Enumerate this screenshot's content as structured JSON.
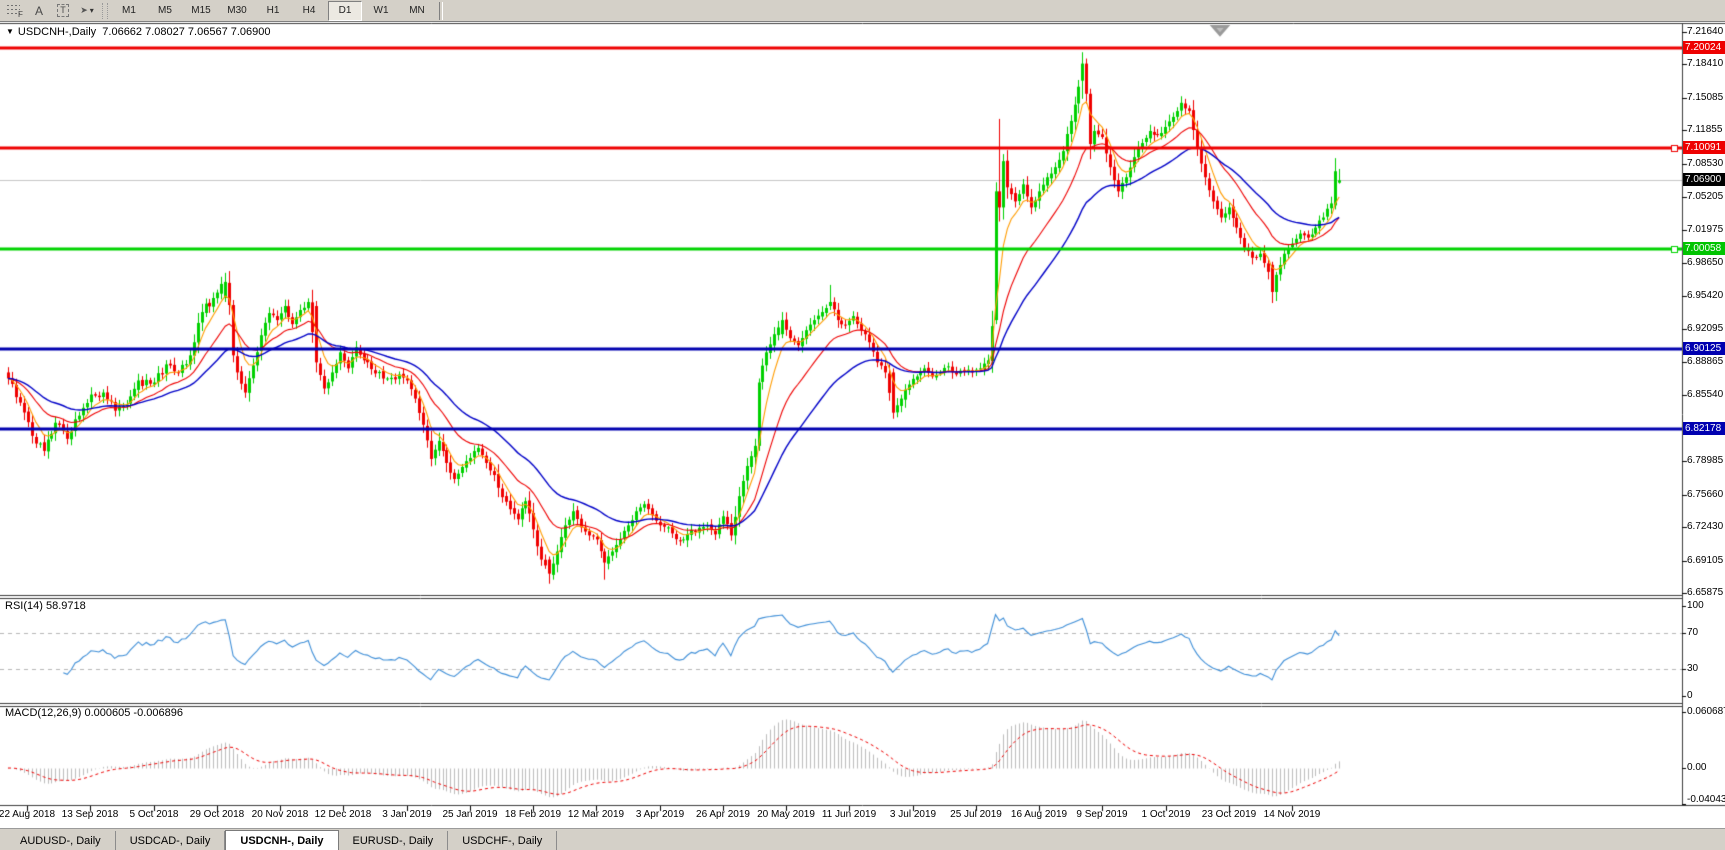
{
  "toolbar": {
    "tools": [
      {
        "name": "fibonacci-tool",
        "glyph": "F"
      },
      {
        "name": "text-label-tool",
        "glyph": "A"
      },
      {
        "name": "text-tool",
        "glyph": "T"
      },
      {
        "name": "arrows-tool",
        "glyph": "➤",
        "caret": "▾"
      }
    ],
    "timeframes": [
      "M1",
      "M5",
      "M15",
      "M30",
      "H1",
      "H4",
      "D1",
      "W1",
      "MN"
    ],
    "active_timeframe": "D1"
  },
  "chart": {
    "title": "USDCNH-,Daily",
    "ohlc_text": "7.06662 7.08027 7.06567 7.06900",
    "collapse_glyph": "▼"
  },
  "price_axis": {
    "ticks": [
      "7.21640",
      "7.18410",
      "7.15085",
      "7.11855",
      "7.08530",
      "7.05205",
      "7.01975",
      "6.98650",
      "6.95420",
      "6.92095",
      "6.88865",
      "6.85540",
      "6.78985",
      "6.75660",
      "6.72430",
      "6.69105",
      "6.65875"
    ],
    "badges": [
      {
        "text": "7.20024",
        "bg": "#ee0000"
      },
      {
        "text": "7.10091",
        "bg": "#ee0000"
      },
      {
        "text": "7.06900",
        "bg": "#000000"
      },
      {
        "text": "7.00058",
        "bg": "#00c400"
      },
      {
        "text": "6.90125",
        "bg": "#0000b0"
      },
      {
        "text": "6.82178",
        "bg": "#0000b0"
      }
    ]
  },
  "rsi": {
    "label": "RSI(14)",
    "value": "58.9718",
    "axis": [
      "100",
      "70",
      "30",
      "0"
    ]
  },
  "macd": {
    "label": "MACD(12,26,9)",
    "values": "0.000605 -0.006896",
    "axis": [
      "0.060687",
      "0.00",
      "-0.040432"
    ]
  },
  "tabs": [
    {
      "label": "AUDUSD-, Daily",
      "active": false
    },
    {
      "label": "USDCAD-, Daily",
      "active": false
    },
    {
      "label": "USDCNH-, Daily",
      "active": true
    },
    {
      "label": "EURUSD-, Daily",
      "active": false
    },
    {
      "label": "USDCHF-, Daily",
      "active": false
    }
  ],
  "chart_data": {
    "type": "candlestick",
    "symbol": "USDCNH-",
    "timeframe": "Daily",
    "last_ohlc": {
      "open": 7.06662,
      "high": 7.08027,
      "low": 7.06567,
      "close": 7.069
    },
    "current_price": 7.069,
    "price_range": [
      6.65875,
      7.2164
    ],
    "candle_count": 338,
    "dates": [
      "22 Aug 2018",
      "13 Sep 2018",
      "5 Oct 2018",
      "29 Oct 2018",
      "20 Nov 2018",
      "12 Dec 2018",
      "3 Jan 2019",
      "25 Jan 2019",
      "18 Feb 2019",
      "12 Mar 2019",
      "3 Apr 2019",
      "26 Apr 2019",
      "20 May 2019",
      "11 Jun 2019",
      "3 Jul 2019",
      "25 Jul 2019",
      "16 Aug 2019",
      "9 Sep 2019",
      "1 Oct 2019",
      "23 Oct 2019",
      "14 Nov 2019"
    ],
    "colors": {
      "bull": "#00d000",
      "bear": "#ef0000",
      "ma_fast": "#ff9c00",
      "ma_mid": "#ef0000",
      "ma_slow": "#0000c8",
      "rsi_line": "#3f8fd8",
      "macd_hist": "#bdbdbd",
      "macd_signal": "#ef0000",
      "price_line": "#c6c6c6",
      "level_dash": "#b6b6b6"
    },
    "horizontal_lines": [
      {
        "price": 7.20024,
        "color": "#ee0000",
        "width": 3,
        "endpoint_square": false
      },
      {
        "price": 7.10091,
        "color": "#ee0000",
        "width": 3,
        "endpoint_square": true
      },
      {
        "price": 7.00058,
        "color": "#00d400",
        "width": 3,
        "endpoint_square": true
      },
      {
        "price": 6.90125,
        "color": "#0000b0",
        "width": 3,
        "endpoint_square": false
      },
      {
        "price": 6.82178,
        "color": "#0000b0",
        "width": 3,
        "endpoint_square": false
      }
    ],
    "moving_averages": [
      {
        "name": "fast",
        "period": 6,
        "color": "#ff9c00"
      },
      {
        "name": "medium",
        "period": 17,
        "color": "#ef0000"
      },
      {
        "name": "slow",
        "period": 34,
        "color": "#0000c8"
      }
    ],
    "indicators": [
      {
        "name": "RSI",
        "period": 14,
        "value": 58.9718,
        "levels": [
          70,
          30
        ],
        "range": [
          0,
          100
        ]
      },
      {
        "name": "MACD",
        "params": [
          12,
          26,
          9
        ],
        "value": 0.000605,
        "signal": -0.006896,
        "scale_max": 0.060687,
        "scale_min": -0.040432
      }
    ],
    "anchor_closes": [
      [
        0,
        6.872
      ],
      [
        3,
        6.848
      ],
      [
        6,
        6.815
      ],
      [
        9,
        6.8
      ],
      [
        12,
        6.828
      ],
      [
        15,
        6.812
      ],
      [
        18,
        6.835
      ],
      [
        21,
        6.856
      ],
      [
        24,
        6.858
      ],
      [
        27,
        6.84
      ],
      [
        30,
        6.846
      ],
      [
        33,
        6.87
      ],
      [
        37,
        6.868
      ],
      [
        40,
        6.886
      ],
      [
        43,
        6.878
      ],
      [
        46,
        6.895
      ],
      [
        49,
        6.938
      ],
      [
        52,
        6.952
      ],
      [
        55,
        6.968
      ],
      [
        56,
        6.945
      ],
      [
        57,
        6.895
      ],
      [
        58,
        6.878
      ],
      [
        60,
        6.858
      ],
      [
        62,
        6.885
      ],
      [
        64,
        6.915
      ],
      [
        66,
        6.937
      ],
      [
        68,
        6.93
      ],
      [
        70,
        6.944
      ],
      [
        72,
        6.926
      ],
      [
        74,
        6.94
      ],
      [
        76,
        6.948
      ],
      [
        78,
        6.888
      ],
      [
        80,
        6.862
      ],
      [
        82,
        6.878
      ],
      [
        84,
        6.898
      ],
      [
        86,
        6.882
      ],
      [
        88,
        6.903
      ],
      [
        90,
        6.89
      ],
      [
        93,
        6.877
      ],
      [
        96,
        6.872
      ],
      [
        99,
        6.876
      ],
      [
        101,
        6.87
      ],
      [
        103,
        6.852
      ],
      [
        105,
        6.826
      ],
      [
        107,
        6.792
      ],
      [
        109,
        6.81
      ],
      [
        111,
        6.788
      ],
      [
        113,
        6.772
      ],
      [
        115,
        6.784
      ],
      [
        117,
        6.793
      ],
      [
        119,
        6.803
      ],
      [
        121,
        6.788
      ],
      [
        123,
        6.776
      ],
      [
        125,
        6.754
      ],
      [
        127,
        6.742
      ],
      [
        129,
        6.732
      ],
      [
        131,
        6.75
      ],
      [
        133,
        6.722
      ],
      [
        135,
        6.692
      ],
      [
        137,
        6.678
      ],
      [
        139,
        6.7
      ],
      [
        141,
        6.726
      ],
      [
        143,
        6.74
      ],
      [
        145,
        6.724
      ],
      [
        147,
        6.716
      ],
      [
        149,
        6.712
      ],
      [
        151,
        6.689
      ],
      [
        153,
        6.7
      ],
      [
        155,
        6.712
      ],
      [
        157,
        6.726
      ],
      [
        159,
        6.74
      ],
      [
        161,
        6.747
      ],
      [
        163,
        6.736
      ],
      [
        165,
        6.726
      ],
      [
        168,
        6.718
      ],
      [
        171,
        6.712
      ],
      [
        174,
        6.72
      ],
      [
        177,
        6.726
      ],
      [
        179,
        6.717
      ],
      [
        181,
        6.735
      ],
      [
        183,
        6.716
      ],
      [
        185,
        6.755
      ],
      [
        187,
        6.785
      ],
      [
        189,
        6.805
      ],
      [
        190,
        6.868
      ],
      [
        192,
        6.898
      ],
      [
        194,
        6.916
      ],
      [
        196,
        6.93
      ],
      [
        198,
        6.912
      ],
      [
        200,
        6.905
      ],
      [
        202,
        6.92
      ],
      [
        204,
        6.93
      ],
      [
        206,
        6.938
      ],
      [
        208,
        6.948
      ],
      [
        210,
        6.93
      ],
      [
        212,
        6.925
      ],
      [
        214,
        6.934
      ],
      [
        216,
        6.92
      ],
      [
        218,
        6.908
      ],
      [
        220,
        6.888
      ],
      [
        222,
        6.878
      ],
      [
        224,
        6.838
      ],
      [
        226,
        6.852
      ],
      [
        228,
        6.866
      ],
      [
        230,
        6.874
      ],
      [
        232,
        6.882
      ],
      [
        234,
        6.874
      ],
      [
        236,
        6.878
      ],
      [
        238,
        6.884
      ],
      [
        240,
        6.876
      ],
      [
        242,
        6.88
      ],
      [
        244,
        6.878
      ],
      [
        246,
        6.882
      ],
      [
        248,
        6.89
      ],
      [
        249,
        6.924
      ],
      [
        250,
        7.058
      ],
      [
        251,
        7.042
      ],
      [
        252,
        7.088
      ],
      [
        253,
        7.062
      ],
      [
        255,
        7.048
      ],
      [
        257,
        7.065
      ],
      [
        259,
        7.042
      ],
      [
        261,
        7.058
      ],
      [
        263,
        7.072
      ],
      [
        265,
        7.082
      ],
      [
        267,
        7.098
      ],
      [
        269,
        7.128
      ],
      [
        271,
        7.162
      ],
      [
        272,
        7.185
      ],
      [
        273,
        7.155
      ],
      [
        274,
        7.105
      ],
      [
        275,
        7.118
      ],
      [
        277,
        7.112
      ],
      [
        279,
        7.082
      ],
      [
        281,
        7.058
      ],
      [
        283,
        7.072
      ],
      [
        285,
        7.092
      ],
      [
        287,
        7.106
      ],
      [
        289,
        7.118
      ],
      [
        291,
        7.114
      ],
      [
        293,
        7.122
      ],
      [
        295,
        7.132
      ],
      [
        297,
        7.146
      ],
      [
        299,
        7.138
      ],
      [
        301,
        7.102
      ],
      [
        303,
        7.072
      ],
      [
        305,
        7.048
      ],
      [
        307,
        7.032
      ],
      [
        309,
        7.042
      ],
      [
        311,
        7.022
      ],
      [
        313,
        7.002
      ],
      [
        315,
        6.992
      ],
      [
        317,
        6.996
      ],
      [
        319,
        6.978
      ],
      [
        320,
        6.958
      ],
      [
        321,
        6.975
      ],
      [
        323,
        6.996
      ],
      [
        325,
        7.006
      ],
      [
        327,
        7.016
      ],
      [
        329,
        7.012
      ],
      [
        331,
        7.022
      ],
      [
        333,
        7.032
      ],
      [
        335,
        7.046
      ],
      [
        336,
        7.078
      ],
      [
        337,
        7.069
      ]
    ],
    "candle_overrides": {
      "55": [
        6.952,
        6.977,
        6.948,
        6.968
      ],
      "57": [
        6.945,
        6.95,
        6.888,
        6.895
      ],
      "78": [
        6.944,
        6.949,
        6.878,
        6.888
      ],
      "137": [
        6.692,
        6.695,
        6.668,
        6.678
      ],
      "151": [
        6.7,
        6.703,
        6.672,
        6.689
      ],
      "190": [
        6.805,
        6.872,
        6.8,
        6.868
      ],
      "196": [
        6.916,
        6.938,
        6.912,
        6.93
      ],
      "208": [
        6.944,
        6.965,
        6.94,
        6.948
      ],
      "224": [
        6.878,
        6.882,
        6.832,
        6.838
      ],
      "250": [
        6.93,
        7.067,
        6.926,
        7.058
      ],
      "251": [
        7.058,
        7.13,
        7.028,
        7.042
      ],
      "252": [
        7.042,
        7.095,
        7.03,
        7.088
      ],
      "272": [
        7.168,
        7.1963,
        7.15,
        7.185
      ],
      "273": [
        7.185,
        7.19,
        7.145,
        7.155
      ],
      "274": [
        7.155,
        7.16,
        7.09,
        7.105
      ],
      "320": [
        6.985,
        6.988,
        6.947,
        6.958
      ],
      "321": [
        6.958,
        6.978,
        6.949,
        6.975
      ],
      "336": [
        7.044,
        7.091,
        7.04,
        7.078
      ],
      "337": [
        7.06662,
        7.08027,
        7.06567,
        7.069
      ]
    }
  }
}
